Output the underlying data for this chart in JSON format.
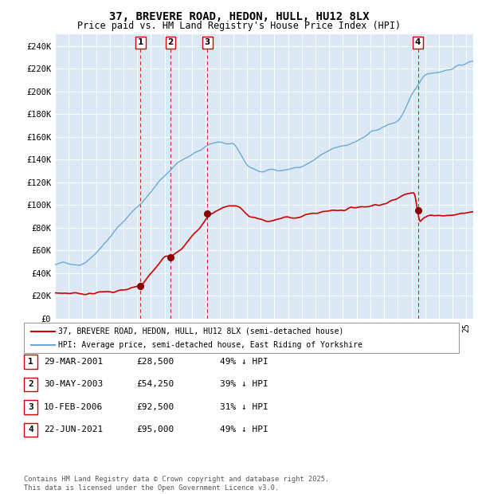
{
  "title": "37, BREVERE ROAD, HEDON, HULL, HU12 8LX",
  "subtitle": "Price paid vs. HM Land Registry's House Price Index (HPI)",
  "background_color": "#dce9f5",
  "ylim": [
    0,
    250000
  ],
  "yticks": [
    0,
    20000,
    40000,
    60000,
    80000,
    100000,
    120000,
    140000,
    160000,
    180000,
    200000,
    220000,
    240000
  ],
  "ytick_labels": [
    "£0",
    "£20K",
    "£40K",
    "£60K",
    "£80K",
    "£100K",
    "£120K",
    "£140K",
    "£160K",
    "£180K",
    "£200K",
    "£220K",
    "£240K"
  ],
  "hpi_color": "#6aaad4",
  "price_color": "#cc0000",
  "marker_color": "#880000",
  "vline_color": "#cc0000",
  "sale_dates": [
    2001.24,
    2003.41,
    2006.12,
    2021.47
  ],
  "sale_prices": [
    28500,
    54250,
    92500,
    95000
  ],
  "sale_labels": [
    "1",
    "2",
    "3",
    "4"
  ],
  "legend_line1": "37, BREVERE ROAD, HEDON, HULL, HU12 8LX (semi-detached house)",
  "legend_line2": "HPI: Average price, semi-detached house, East Riding of Yorkshire",
  "table_data": [
    [
      "1",
      "29-MAR-2001",
      "£28,500",
      "49% ↓ HPI"
    ],
    [
      "2",
      "30-MAY-2003",
      "£54,250",
      "39% ↓ HPI"
    ],
    [
      "3",
      "10-FEB-2006",
      "£92,500",
      "31% ↓ HPI"
    ],
    [
      "4",
      "22-JUN-2021",
      "£95,000",
      "49% ↓ HPI"
    ]
  ],
  "footer": "Contains HM Land Registry data © Crown copyright and database right 2025.\nThis data is licensed under the Open Government Licence v3.0.",
  "xmin": 1995.0,
  "xmax": 2025.5
}
